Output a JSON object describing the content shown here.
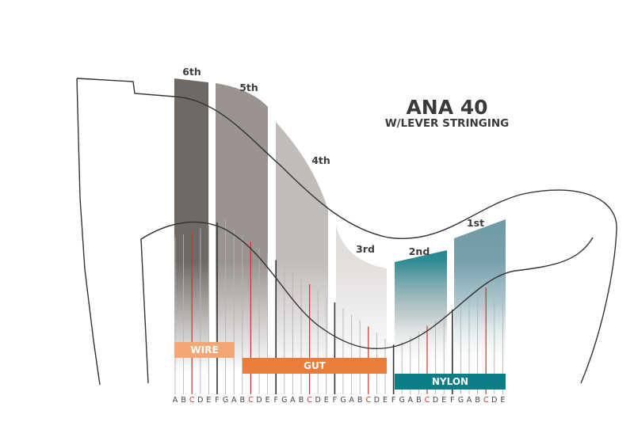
{
  "title": "ANA 40",
  "subtitle": "W/LEVER STRINGING",
  "octaves": [
    {
      "label": "6th",
      "color": "#6f6965"
    },
    {
      "label": "5th",
      "color": "#9a9390"
    },
    {
      "label": "4th",
      "color": "#c1bcba"
    },
    {
      "label": "3rd",
      "color": "#e1dedc"
    },
    {
      "label": "2nd",
      "color": "#1e8893"
    },
    {
      "label": "1st",
      "color": "#6e9aa6"
    }
  ],
  "materials": [
    {
      "label": "WIRE",
      "color": "#f2a774"
    },
    {
      "label": "GUT",
      "color": "#ea7c3c"
    },
    {
      "label": "NYLON",
      "color": "#0f7d86"
    }
  ],
  "notes": [
    "A",
    "B",
    "C",
    "D",
    "E",
    "F",
    "G",
    "A",
    "B",
    "C",
    "D",
    "E",
    "F",
    "G",
    "A",
    "B",
    "C",
    "D",
    "E",
    "F",
    "G",
    "A",
    "B",
    "C",
    "D",
    "E",
    "F",
    "G",
    "A",
    "B",
    "C",
    "D",
    "E",
    "F",
    "G",
    "A",
    "B",
    "C",
    "D",
    "E"
  ],
  "colors": {
    "c_string": "#c0392b",
    "f_string": "#333333",
    "string": "#b4b4b4",
    "outline": "#333333"
  }
}
